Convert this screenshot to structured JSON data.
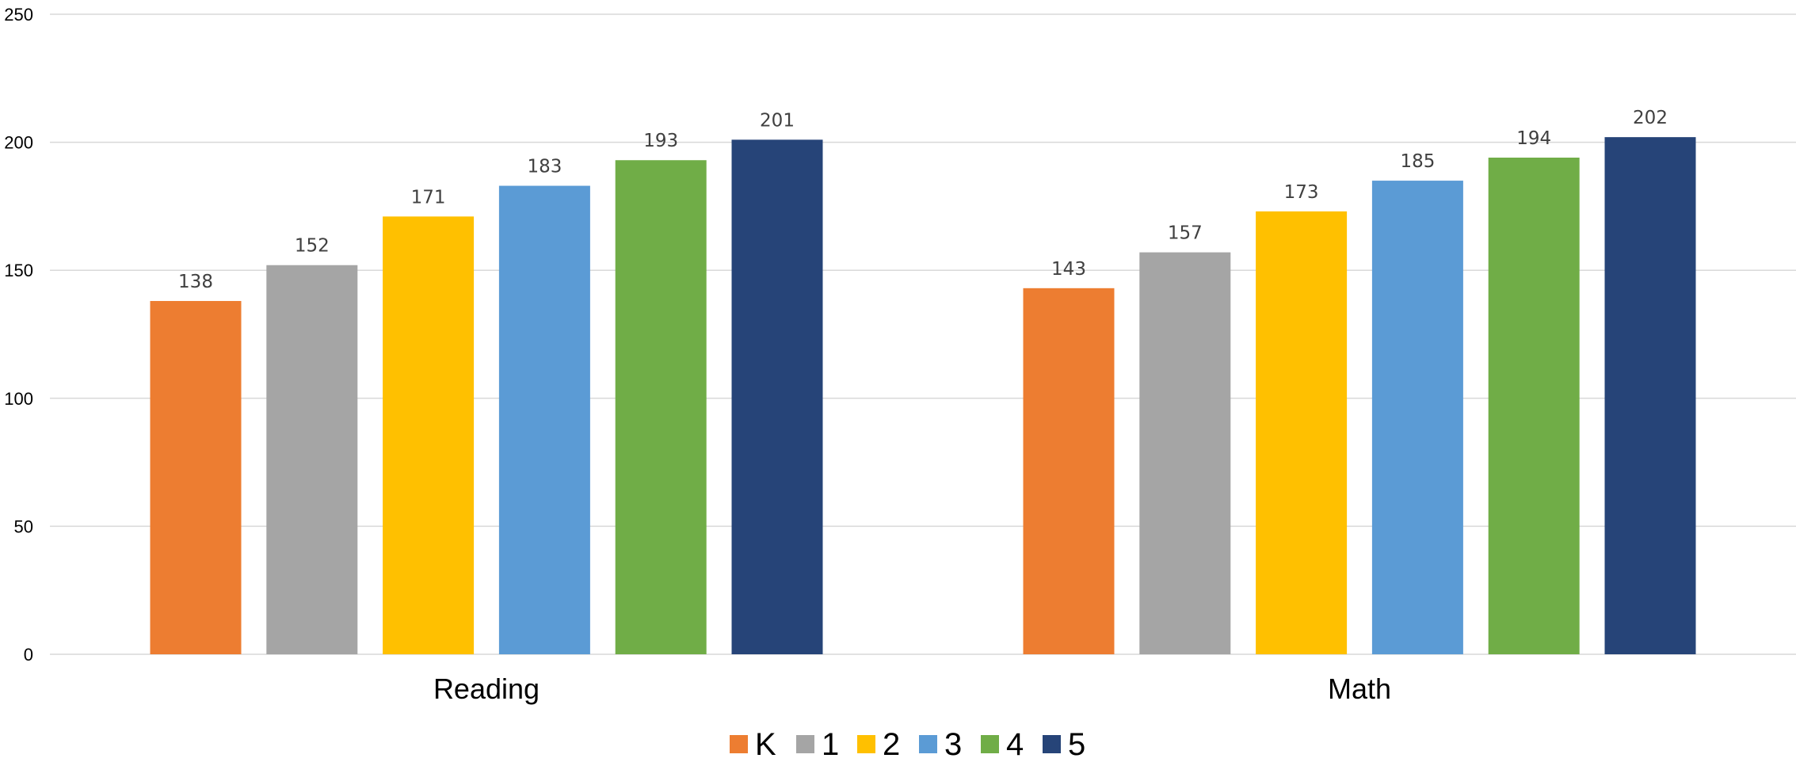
{
  "chart_data": {
    "type": "bar",
    "title": "",
    "xlabel": "",
    "ylabel": "",
    "ylim": [
      0,
      250
    ],
    "y_ticks": [
      "0",
      "50",
      "100",
      "150",
      "200",
      "250"
    ],
    "grid": true,
    "legend_position": "bottom",
    "categories": [
      "Reading",
      "Math"
    ],
    "series": [
      {
        "name": "K",
        "color": "#ED7D31",
        "values": [
          138,
          143
        ]
      },
      {
        "name": "1",
        "color": "#A5A5A5",
        "values": [
          152,
          157
        ]
      },
      {
        "name": "2",
        "color": "#FFC000",
        "values": [
          171,
          173
        ]
      },
      {
        "name": "3",
        "color": "#5B9BD5",
        "values": [
          183,
          185
        ]
      },
      {
        "name": "4",
        "color": "#70AD47",
        "values": [
          193,
          194
        ]
      },
      {
        "name": "5",
        "color": "#264478",
        "values": [
          201,
          202
        ]
      }
    ]
  }
}
